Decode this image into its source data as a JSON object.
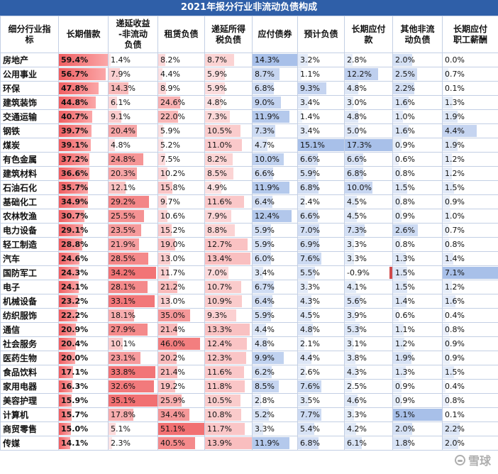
{
  "colors": {
    "title_bg": "#2f5fa8",
    "title_text": "#ffffff",
    "grid_border": "#c3cfe4",
    "bar_red_strong": "#ef5f62",
    "bar_red_light": "#fba7a8",
    "bar_blue": "#7a9edd",
    "negative_bar": "#d04a4a",
    "watermark_gray": "#9a9a9a"
  },
  "watermark": {
    "text": "雪球"
  },
  "chart_data": {
    "type": "table",
    "title": "2021年报分行业非流动负债构成",
    "unit": "%",
    "row_header": "细分行业指\n标",
    "legend_note": "red data bars = higher share (left columns), blue bars = payables/bonds columns",
    "columns": [
      "长期借款",
      "递延收益\n-非流动\n负债",
      "租赁负债",
      "递延所得\n税负债",
      "应付债券",
      "预计负债",
      "长期应付\n款",
      "其他非流\n动负债",
      "长期应付\n职工薪酬"
    ],
    "industries": [
      "房地产",
      "公用事业",
      "环保",
      "建筑装饰",
      "交通运输",
      "钢铁",
      "煤炭",
      "有色金属",
      "建筑材料",
      "石油石化",
      "基础化工",
      "农林牧渔",
      "电力设备",
      "轻工制造",
      "汽车",
      "国防军工",
      "电子",
      "机械设备",
      "纺织服饰",
      "通信",
      "社会服务",
      "医药生物",
      "食品饮料",
      "家用电器",
      "美容护理",
      "计算机",
      "商贸零售",
      "传媒"
    ],
    "values": [
      [
        "59.4%",
        "1.4%",
        "8.2%",
        "8.7%",
        "14.3%",
        "3.2%",
        "2.8%",
        "2.0%",
        "0.0%"
      ],
      [
        "56.7%",
        "7.9%",
        "4.4%",
        "5.9%",
        "8.7%",
        "1.1%",
        "12.2%",
        "2.5%",
        "0.7%"
      ],
      [
        "47.8%",
        "14.3%",
        "8.9%",
        "5.9%",
        "6.8%",
        "9.3%",
        "4.8%",
        "2.2%",
        "0.1%"
      ],
      [
        "44.8%",
        "6.1%",
        "24.6%",
        "4.8%",
        "9.0%",
        "3.4%",
        "3.0%",
        "1.6%",
        "1.3%"
      ],
      [
        "40.7%",
        "9.1%",
        "22.0%",
        "7.3%",
        "11.9%",
        "1.4%",
        "4.8%",
        "1.0%",
        "1.9%"
      ],
      [
        "39.7%",
        "20.4%",
        "5.9%",
        "10.5%",
        "7.3%",
        "3.4%",
        "5.0%",
        "1.6%",
        "4.4%"
      ],
      [
        "39.1%",
        "4.8%",
        "5.2%",
        "11.0%",
        "4.7%",
        "15.1%",
        "17.3%",
        "0.9%",
        "1.9%"
      ],
      [
        "37.2%",
        "24.8%",
        "7.5%",
        "8.2%",
        "10.0%",
        "6.6%",
        "6.6%",
        "0.6%",
        "1.2%"
      ],
      [
        "36.6%",
        "20.3%",
        "10.2%",
        "8.5%",
        "6.6%",
        "5.9%",
        "6.8%",
        "0.8%",
        "1.2%"
      ],
      [
        "35.7%",
        "12.1%",
        "15.8%",
        "4.9%",
        "11.9%",
        "6.8%",
        "10.0%",
        "1.5%",
        "1.5%"
      ],
      [
        "34.9%",
        "29.2%",
        "9.7%",
        "11.6%",
        "6.4%",
        "2.4%",
        "4.5%",
        "0.8%",
        "0.9%"
      ],
      [
        "30.7%",
        "25.5%",
        "10.6%",
        "7.9%",
        "12.4%",
        "6.6%",
        "4.5%",
        "0.9%",
        "1.0%"
      ],
      [
        "29.1%",
        "23.5%",
        "15.2%",
        "8.8%",
        "5.9%",
        "7.0%",
        "7.3%",
        "2.6%",
        "0.7%"
      ],
      [
        "28.8%",
        "21.9%",
        "19.0%",
        "12.7%",
        "5.9%",
        "6.9%",
        "3.3%",
        "0.8%",
        "0.8%"
      ],
      [
        "24.6%",
        "28.5%",
        "13.0%",
        "13.4%",
        "6.0%",
        "7.6%",
        "3.3%",
        "1.3%",
        "1.4%"
      ],
      [
        "24.3%",
        "34.2%",
        "11.7%",
        "7.0%",
        "3.4%",
        "5.5%",
        "-0.9%",
        "1.5%",
        "7.1%"
      ],
      [
        "24.1%",
        "28.1%",
        "21.2%",
        "10.7%",
        "6.7%",
        "3.3%",
        "4.1%",
        "1.5%",
        "1.2%"
      ],
      [
        "23.2%",
        "33.1%",
        "13.0%",
        "10.9%",
        "6.4%",
        "4.3%",
        "5.6%",
        "1.4%",
        "1.6%"
      ],
      [
        "22.2%",
        "18.1%",
        "35.0%",
        "9.3%",
        "5.9%",
        "4.5%",
        "3.9%",
        "0.6%",
        "0.4%"
      ],
      [
        "20.9%",
        "27.9%",
        "21.4%",
        "13.3%",
        "4.4%",
        "4.8%",
        "5.3%",
        "1.1%",
        "0.8%"
      ],
      [
        "20.4%",
        "10.1%",
        "46.0%",
        "12.4%",
        "4.8%",
        "2.1%",
        "3.1%",
        "1.2%",
        "0.9%"
      ],
      [
        "20.0%",
        "23.1%",
        "20.2%",
        "12.3%",
        "9.9%",
        "4.4%",
        "3.8%",
        "1.9%",
        "0.9%"
      ],
      [
        "17.1%",
        "33.8%",
        "21.4%",
        "11.6%",
        "6.2%",
        "2.6%",
        "4.3%",
        "1.3%",
        "1.5%"
      ],
      [
        "16.3%",
        "32.6%",
        "19.2%",
        "11.8%",
        "8.5%",
        "7.6%",
        "2.5%",
        "0.9%",
        "0.4%"
      ],
      [
        "15.9%",
        "35.1%",
        "25.9%",
        "10.5%",
        "2.8%",
        "3.5%",
        "4.6%",
        "0.9%",
        "0.8%"
      ],
      [
        "15.7%",
        "17.8%",
        "34.4%",
        "10.8%",
        "5.2%",
        "7.7%",
        "3.3%",
        "5.1%",
        "0.1%"
      ],
      [
        "15.0%",
        "5.1%",
        "51.1%",
        "11.7%",
        "3.3%",
        "5.4%",
        "4.2%",
        "2.0%",
        "2.2%"
      ],
      [
        "14.1%",
        "2.3%",
        "40.5%",
        "13.9%",
        "11.9%",
        "6.8%",
        "6.1%",
        "1.8%",
        "2.0%"
      ]
    ]
  }
}
